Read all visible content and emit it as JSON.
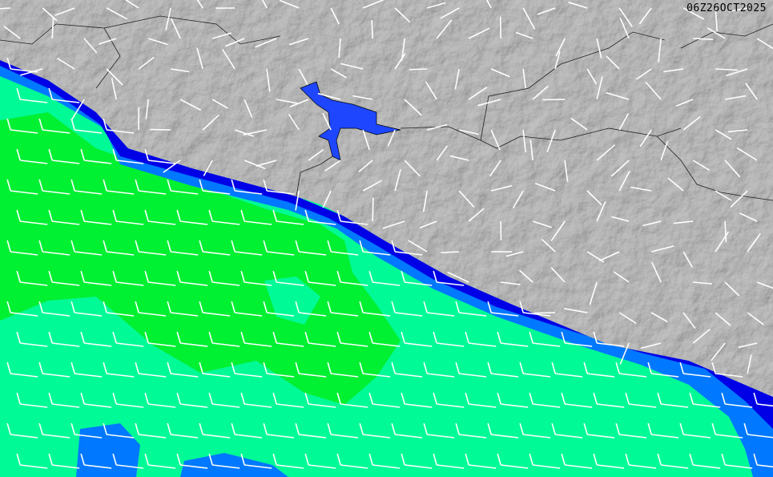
{
  "map": {
    "valid_time_label": "06Z26OCT2025",
    "colors": {
      "land": "#a9a9a9",
      "water_deep_blue": "#0000e6",
      "water_blue": "#0078ff",
      "water_aqua": "#00fa96",
      "water_green": "#00f032",
      "lake": "#1e46ff",
      "barbs": "#ffffff",
      "borders": "#202020"
    }
  }
}
